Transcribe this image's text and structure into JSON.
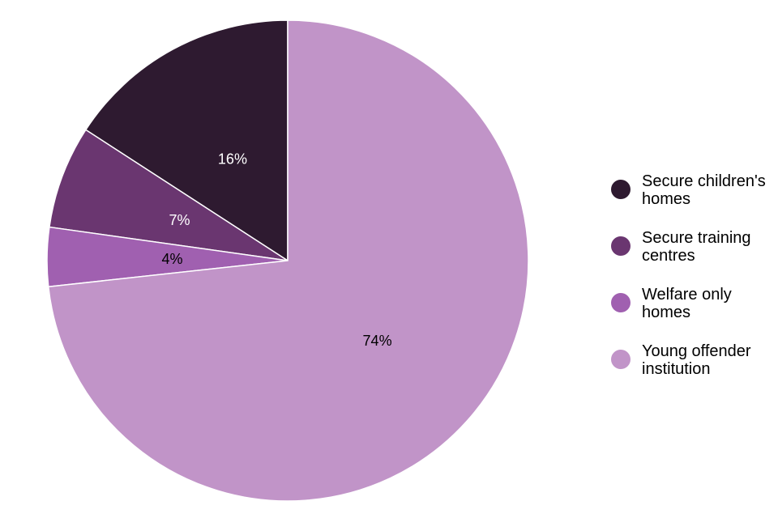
{
  "chart_data": {
    "type": "pie",
    "title": "",
    "categories": [
      "Secure children's homes",
      "Secure training centres",
      "Welfare only homes",
      "Young offender institution"
    ],
    "values": [
      16,
      7,
      4,
      74
    ],
    "labels": [
      "16%",
      "7%",
      "4%",
      "74%"
    ],
    "colors": [
      "#2e1a30",
      "#6a3670",
      "#a060b0",
      "#c194c8"
    ],
    "label_colors": [
      "#ffffff",
      "#ffffff",
      "#000000",
      "#000000"
    ],
    "legend": {
      "placement": "right",
      "entries": [
        [
          "Secure children's",
          "homes"
        ],
        [
          "Secure training",
          "centres"
        ],
        [
          "Welfare only",
          "homes"
        ],
        [
          "Young offender",
          "institution"
        ]
      ]
    }
  }
}
